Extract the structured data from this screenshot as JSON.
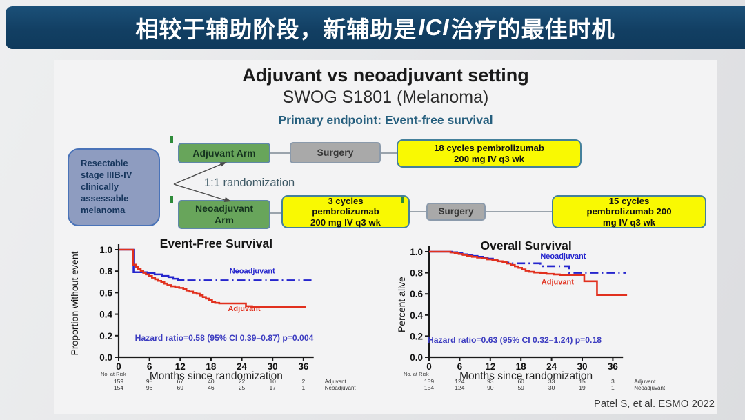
{
  "header": {
    "title_pre": "相较于辅助阶段，新辅助是",
    "title_ici": "ICI",
    "title_post": "治疗的最佳时机"
  },
  "content": {
    "title": "Adjuvant vs neoadjuvant setting",
    "subtitle": "SWOG S1801 (Melanoma)",
    "endpoint": "Primary endpoint: Event-free survival",
    "citation": "Patel S, et al. ESMO 2022"
  },
  "diagram": {
    "patient_box": "Resectable\nstage IIIB-IV\nclinically\nassessable\nmelanoma",
    "randomization": "1:1 randomization",
    "adjuvant_arm": "Adjuvant Arm",
    "neoadjuvant_arm": "Neoadjuvant\nArm",
    "surgery_top": "Surgery",
    "surgery_bottom": "Surgery",
    "adjuvant_treatment": "18 cycles pembrolizumab\n200 mg IV q3 wk",
    "neoadjuvant_pre_treatment": "3 cycles\npembrolizumab\n200 mg IV q3 wk",
    "neoadjuvant_post_treatment": "15 cycles\npembrolizumab 200\nmg IV q3 wk"
  },
  "colors": {
    "header_bg": "#123f63",
    "endpoint_text": "#265f7e",
    "hazard_text": "#3c3cc0",
    "adjuvant_red": "#e1301e",
    "neoadjuvant_blue": "#2525cd",
    "arm_green": "#68a55b",
    "surgery_gray": "#a9a9a9",
    "treatment_yellow": "#f9f902",
    "patient_blue": "#8e9cc0"
  },
  "chart_data": [
    {
      "type": "line",
      "title": "Event-Free Survival",
      "xlabel": "Months since randomization",
      "ylabel": "Proportion without event",
      "xlim": [
        0,
        38
      ],
      "ylim": [
        0,
        1
      ],
      "xticks": [
        0,
        6,
        12,
        18,
        24,
        30,
        36
      ],
      "yticks": [
        0.0,
        0.2,
        0.4,
        0.6,
        0.8,
        1.0
      ],
      "grid": false,
      "annotation": "Hazard ratio=0.58 (95% CI 0.39–0.87) p=0.004",
      "series": [
        {
          "name": "Neoadjuvant",
          "color": "#2525cd",
          "style": "dashed",
          "dash_from": 12.5,
          "label_at": [
            21.6,
            0.78
          ],
          "points": [
            [
              0,
              1
            ],
            [
              2.9,
              1
            ],
            [
              2.9,
              0.79
            ],
            [
              5.5,
              0.79
            ],
            [
              5.5,
              0.78
            ],
            [
              7,
              0.78
            ],
            [
              7,
              0.77
            ],
            [
              8.5,
              0.77
            ],
            [
              8.5,
              0.755
            ],
            [
              9.7,
              0.755
            ],
            [
              9.7,
              0.745
            ],
            [
              10.6,
              0.745
            ],
            [
              10.6,
              0.73
            ],
            [
              11.6,
              0.73
            ],
            [
              11.6,
              0.72
            ],
            [
              13,
              0.72
            ],
            [
              13,
              0.715
            ],
            [
              38,
              0.715
            ]
          ]
        },
        {
          "name": "Adjuvant",
          "color": "#e1301e",
          "style": "solid",
          "label_at": [
            21.3,
            0.43
          ],
          "points": [
            [
              0,
              1
            ],
            [
              2.8,
              1
            ],
            [
              2.8,
              0.86
            ],
            [
              3.4,
              0.84
            ],
            [
              3.8,
              0.82
            ],
            [
              4.3,
              0.8
            ],
            [
              4.8,
              0.785
            ],
            [
              5.3,
              0.77
            ],
            [
              5.9,
              0.755
            ],
            [
              6.5,
              0.74
            ],
            [
              7.1,
              0.725
            ],
            [
              7.7,
              0.71
            ],
            [
              8.3,
              0.7
            ],
            [
              8.9,
              0.685
            ],
            [
              9.5,
              0.67
            ],
            [
              10.2,
              0.66
            ],
            [
              11,
              0.65
            ],
            [
              11.8,
              0.645
            ],
            [
              12.6,
              0.635
            ],
            [
              13.2,
              0.62
            ],
            [
              13.8,
              0.61
            ],
            [
              14.5,
              0.6
            ],
            [
              15.2,
              0.59
            ],
            [
              15.8,
              0.575
            ],
            [
              16.4,
              0.56
            ],
            [
              17,
              0.545
            ],
            [
              17.6,
              0.53
            ],
            [
              18.2,
              0.515
            ],
            [
              18.8,
              0.505
            ],
            [
              19.6,
              0.5
            ],
            [
              24.8,
              0.5
            ],
            [
              24.8,
              0.475
            ],
            [
              26,
              0.47
            ],
            [
              36.5,
              0.47
            ]
          ]
        }
      ],
      "risk_table": {
        "label": "No. at Risk",
        "rows": [
          {
            "name": "Adjuvant",
            "values": [
              159,
              98,
              67,
              40,
              22,
              10,
              2
            ]
          },
          {
            "name": "Neoadjuvant",
            "values": [
              154,
              96,
              69,
              46,
              25,
              17,
              1
            ]
          }
        ]
      }
    },
    {
      "type": "line",
      "title": "Overall Survival",
      "xlabel": "Months since randomization",
      "ylabel": "Percent alive",
      "xlim": [
        0,
        38
      ],
      "ylim": [
        0,
        1
      ],
      "xticks": [
        0,
        6,
        12,
        18,
        24,
        30,
        36
      ],
      "yticks": [
        0.0,
        0.2,
        0.4,
        0.6,
        0.8,
        1.0
      ],
      "grid": false,
      "annotation": "Hazard ratio=0.63 (95% CI 0.32–1.24) p=0.18",
      "series": [
        {
          "name": "Neoadjuvant",
          "color": "#2525cd",
          "style": "dashed",
          "dash_from": 13.5,
          "label_at": [
            21.8,
            0.935
          ],
          "points": [
            [
              0,
              1
            ],
            [
              3.8,
              1
            ],
            [
              4.5,
              0.995
            ],
            [
              5.5,
              0.985
            ],
            [
              6.5,
              0.975
            ],
            [
              7.5,
              0.97
            ],
            [
              8.5,
              0.96
            ],
            [
              9.5,
              0.952
            ],
            [
              10.5,
              0.944
            ],
            [
              11.5,
              0.934
            ],
            [
              12.5,
              0.925
            ],
            [
              13.5,
              0.915
            ],
            [
              14.2,
              0.905
            ],
            [
              15,
              0.897
            ],
            [
              15.8,
              0.89
            ],
            [
              21.8,
              0.89
            ],
            [
              21.8,
              0.863
            ],
            [
              27.4,
              0.863
            ],
            [
              27.4,
              0.8
            ],
            [
              38.6,
              0.8
            ]
          ]
        },
        {
          "name": "Adjuvant",
          "color": "#e1301e",
          "style": "solid",
          "label_at": [
            22,
            0.69
          ],
          "points": [
            [
              0,
              1
            ],
            [
              3.4,
              1
            ],
            [
              4.2,
              0.993
            ],
            [
              5,
              0.987
            ],
            [
              5.8,
              0.978
            ],
            [
              6.6,
              0.97
            ],
            [
              7.4,
              0.96
            ],
            [
              8.4,
              0.952
            ],
            [
              9.4,
              0.945
            ],
            [
              10.4,
              0.937
            ],
            [
              11.4,
              0.928
            ],
            [
              12.4,
              0.92
            ],
            [
              13.4,
              0.91
            ],
            [
              14.4,
              0.9
            ],
            [
              15.2,
              0.888
            ],
            [
              16,
              0.875
            ],
            [
              16.8,
              0.862
            ],
            [
              17.5,
              0.848
            ],
            [
              18.2,
              0.833
            ],
            [
              18.9,
              0.82
            ],
            [
              19.6,
              0.81
            ],
            [
              20.6,
              0.803
            ],
            [
              21.8,
              0.797
            ],
            [
              23,
              0.79
            ],
            [
              24.4,
              0.785
            ],
            [
              25.6,
              0.78
            ],
            [
              30.4,
              0.78
            ],
            [
              30.4,
              0.72
            ],
            [
              32.9,
              0.72
            ],
            [
              32.9,
              0.59
            ],
            [
              38.8,
              0.59
            ]
          ]
        }
      ],
      "risk_table": {
        "label": "No. at Risk",
        "rows": [
          {
            "name": "Adjuvant",
            "values": [
              159,
              124,
              93,
              60,
              33,
              15,
              3
            ]
          },
          {
            "name": "Neoadjuvant",
            "values": [
              154,
              124,
              90,
              59,
              30,
              19,
              1
            ]
          }
        ]
      }
    }
  ]
}
